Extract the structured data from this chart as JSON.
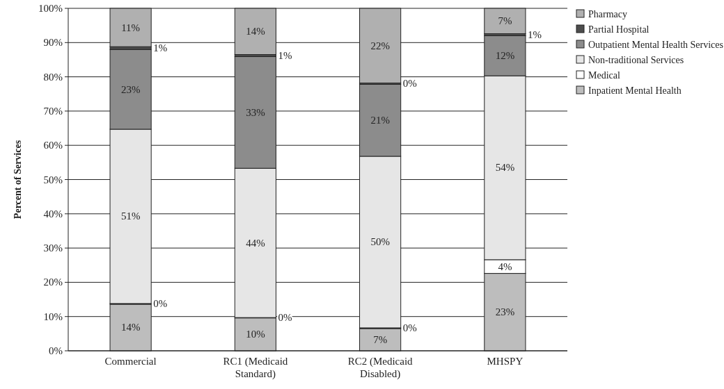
{
  "chart_data": {
    "type": "bar",
    "stacked": true,
    "ylabel": "Percent of Services",
    "categories": [
      "Commercial",
      "RC1 (Medicaid Standard)",
      "RC2 (Medicaid Disabled)",
      "MHSPY"
    ],
    "series": [
      {
        "name": "Inpatient Mental Health",
        "color": "#bdbdbd",
        "values": [
          13.6,
          9.6,
          6.5,
          22.6
        ],
        "value_labels": [
          "14%",
          "10%",
          "7%",
          "23%"
        ]
      },
      {
        "name": "Medical",
        "color": "#ffffff",
        "values": [
          0.2,
          0.1,
          0.2,
          4.0
        ],
        "value_labels": [
          "0%",
          "0%",
          "0%",
          "4%"
        ]
      },
      {
        "name": "Non-traditional Services",
        "color": "#e6e6e6",
        "values": [
          50.9,
          43.6,
          50.1,
          53.7
        ],
        "value_labels": [
          "51%",
          "44%",
          "50%",
          "54%"
        ]
      },
      {
        "name": "Outpatient Mental Health Services",
        "color": "#8c8c8c",
        "values": [
          23.3,
          32.6,
          21.0,
          11.7
        ],
        "value_labels": [
          "23%",
          "33%",
          "21%",
          "12%"
        ]
      },
      {
        "name": "Partial Hospital",
        "color": "#4d4d4d",
        "values": [
          0.8,
          0.6,
          0.4,
          0.6
        ],
        "value_labels": [
          "1%",
          "1%",
          "0%",
          "1%"
        ]
      },
      {
        "name": "Pharmacy",
        "color": "#b0b0b0",
        "values": [
          11.2,
          13.5,
          21.8,
          7.4
        ],
        "value_labels": [
          "11%",
          "14%",
          "22%",
          "7%"
        ]
      }
    ],
    "ylim": [
      0,
      100
    ],
    "yticks": [
      {
        "value": 0,
        "label": "0%"
      },
      {
        "value": 10,
        "label": "10%"
      },
      {
        "value": 20,
        "label": "20%"
      },
      {
        "value": 30,
        "label": "30%"
      },
      {
        "value": 40,
        "label": "40%"
      },
      {
        "value": 50,
        "label": "50%"
      },
      {
        "value": 60,
        "label": "60%"
      },
      {
        "value": 70,
        "label": "70%"
      },
      {
        "value": 80,
        "label": "80%"
      },
      {
        "value": 90,
        "label": "90%"
      },
      {
        "value": 100,
        "label": "100%"
      }
    ],
    "grid": "y",
    "legend": "right"
  }
}
